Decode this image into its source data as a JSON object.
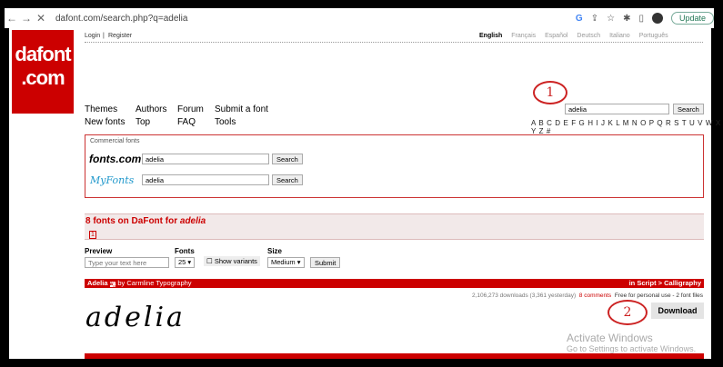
{
  "browser": {
    "url": "dafont.com/search.php?q=adelia",
    "update_label": "Update"
  },
  "logo": {
    "line1": "dafont",
    ".com": ".com",
    "line2": ".com"
  },
  "top": {
    "login": "Login",
    "sep": "|",
    "register": "Register",
    "languages": [
      "English",
      "Français",
      "Español",
      "Deutsch",
      "Italiano",
      "Português"
    ]
  },
  "menu": {
    "themes": "Themes",
    "authors": "Authors",
    "forum": "Forum",
    "submit": "Submit a font",
    "new": "New fonts",
    "top": "Top",
    "faq": "FAQ",
    "tools": "Tools"
  },
  "search": {
    "value": "adelia",
    "button": "Search",
    "alphabet": "A B C D E F G H I J K L M N O P Q R S T U V W X Y Z #"
  },
  "commercial": {
    "title": "Commercial fonts",
    "fontscom_logo": "fonts.com",
    "myfonts_logo": "MyFonts",
    "fontscom_value": "adelia",
    "myfonts_value": "adelia",
    "button": "Search"
  },
  "results": {
    "heading": "8 fonts on DaFont for ",
    "query": "adelia",
    "page": "1"
  },
  "filters": {
    "preview_label": "Preview",
    "preview_placeholder": "Type your text here",
    "fonts_label": "Fonts",
    "fonts_value": "25",
    "variants_label": "Show variants",
    "size_label": "Size",
    "size_value": "Medium",
    "submit": "Submit"
  },
  "font": {
    "name": "Adelia",
    "by": "by Carmline Typography",
    "category": "in Script > Calligraphy",
    "downloads": "2,106,273 downloads (3,361 yesterday)",
    "comments": "8 comments",
    "license": "Free for personal use - 2 font files",
    "preview_text": "adelia",
    "download": "Download"
  },
  "annotations": {
    "one": "1",
    "two": "2"
  },
  "watermark": {
    "title": "Activate Windows",
    "sub": "Go to Settings to activate Windows."
  }
}
